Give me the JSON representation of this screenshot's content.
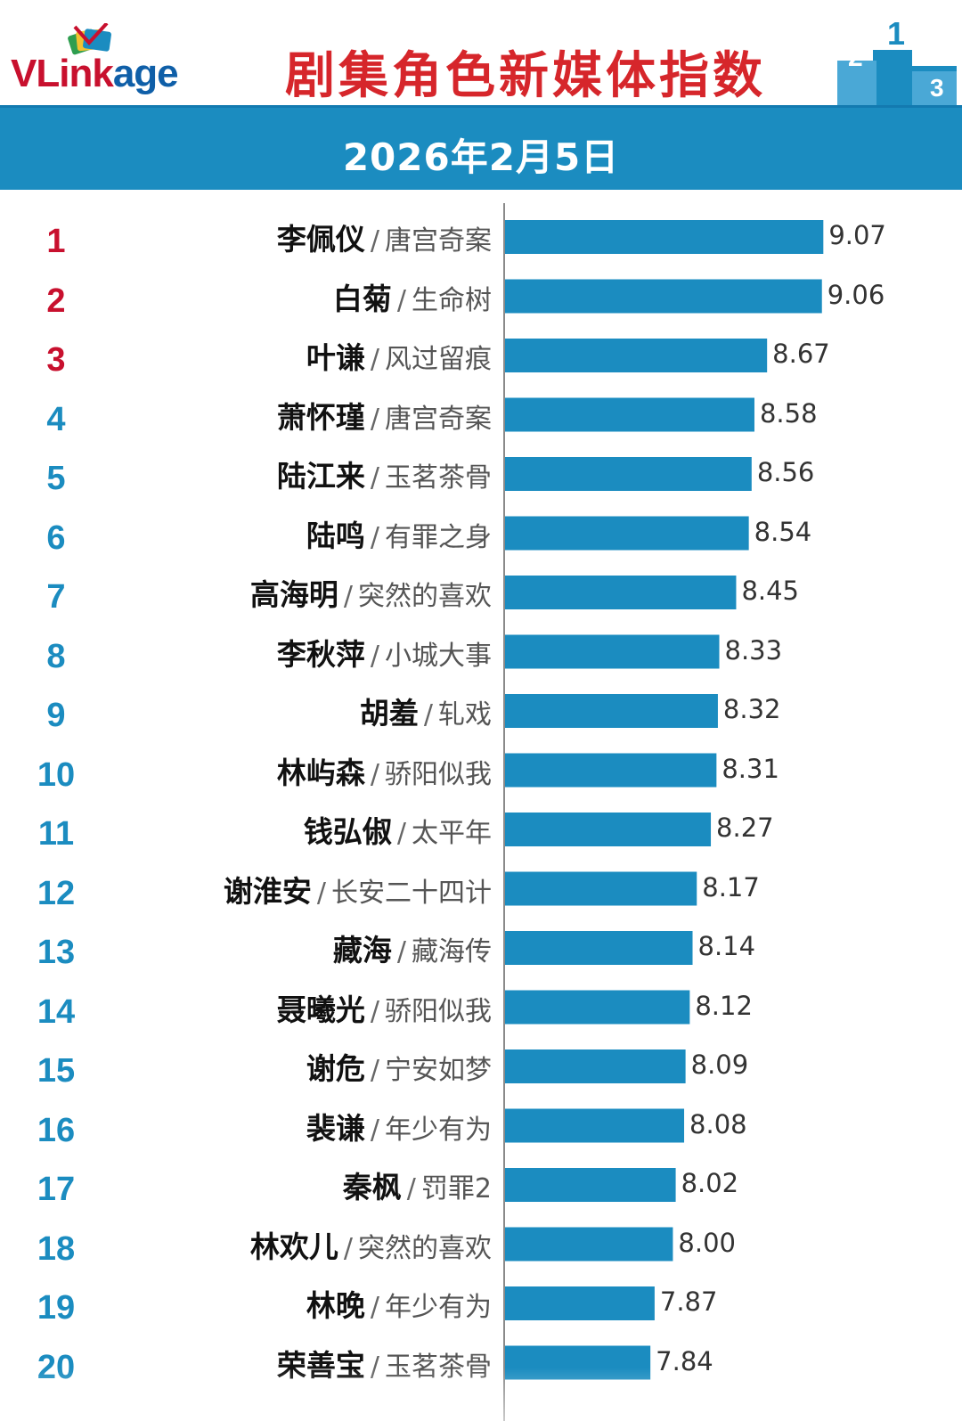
{
  "logo": {
    "part1": "VL",
    "part2": "ink",
    "part3": "age"
  },
  "header": {
    "title": "剧集角色新媒体指数"
  },
  "date": "2026年2月5日",
  "colors": {
    "bar": "#1b8cc0",
    "title": "#d6262b",
    "rank_top": "#c8102e",
    "rank_other": "#1b8cc0",
    "band": "#1b8cc0"
  },
  "chart_data": {
    "type": "bar",
    "orientation": "horizontal",
    "title": "剧集角色新媒体指数",
    "subtitle": "2026年2月5日",
    "xlim": [
      6.8,
      9.2
    ],
    "ranks": [
      "1",
      "2",
      "3",
      "4",
      "5",
      "6",
      "7",
      "8",
      "9",
      "10",
      "11",
      "12",
      "13",
      "14",
      "15",
      "16",
      "17",
      "18",
      "19",
      "20"
    ],
    "names": [
      "李佩仪",
      "白菊",
      "叶谦",
      "萧怀瑾",
      "陆江来",
      "陆鸣",
      "高海明",
      "李秋萍",
      "胡羞",
      "林屿森",
      "钱弘俶",
      "谢淮安",
      "藏海",
      "聂曦光",
      "谢危",
      "裴谦",
      "秦枫",
      "林欢儿",
      "林晚",
      "荣善宝"
    ],
    "dramas": [
      "唐宫奇案",
      "生命树",
      "风过留痕",
      "唐宫奇案",
      "玉茗茶骨",
      "有罪之身",
      "突然的喜欢",
      "小城大事",
      "轧戏",
      "骄阳似我",
      "太平年",
      "长安二十四计",
      "藏海传",
      "骄阳似我",
      "宁安如梦",
      "年少有为",
      "罚罪2",
      "突然的喜欢",
      "年少有为",
      "玉茗茶骨"
    ],
    "separator": "/",
    "labels": [
      "9.07",
      "9.06",
      "8.67",
      "8.58",
      "8.56",
      "8.54",
      "8.45",
      "8.33",
      "8.32",
      "8.31",
      "8.27",
      "8.17",
      "8.14",
      "8.12",
      "8.09",
      "8.08",
      "8.02",
      "8.00",
      "7.87",
      "7.84"
    ],
    "values": [
      9.07,
      9.06,
      8.67,
      8.58,
      8.56,
      8.54,
      8.45,
      8.33,
      8.32,
      8.31,
      8.27,
      8.17,
      8.14,
      8.12,
      8.09,
      8.08,
      8.02,
      8.0,
      7.87,
      7.84
    ]
  }
}
